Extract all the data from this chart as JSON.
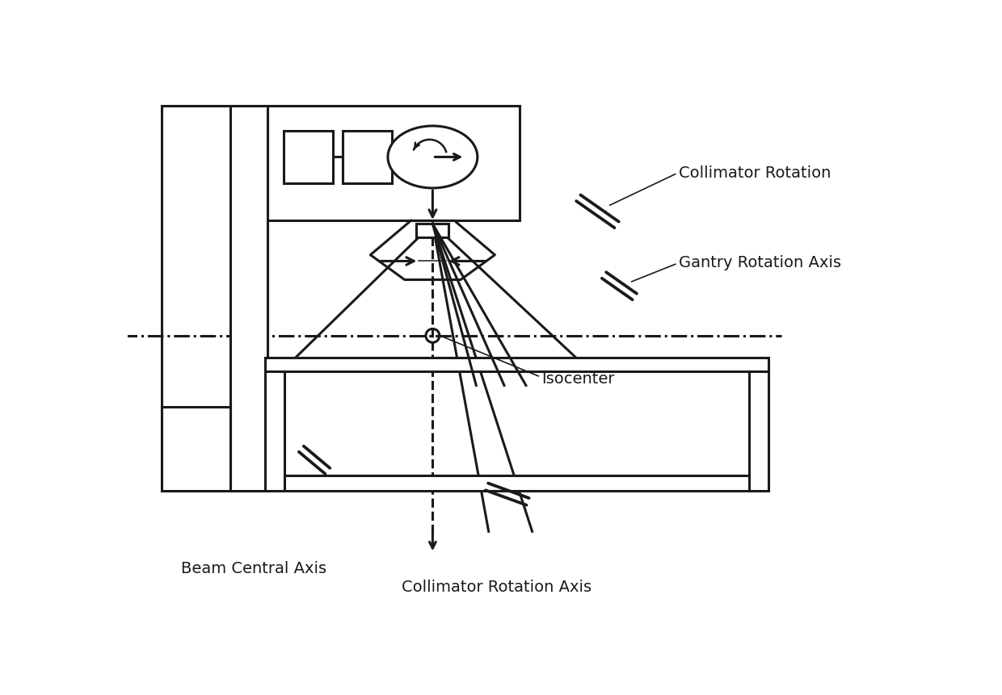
{
  "bg_color": "#ffffff",
  "line_color": "#1a1a1a",
  "lw": 2.2,
  "labels": {
    "collimator_rotation": "Collimator Rotation",
    "gantry_rotation_axis": "Gantry Rotation Axis",
    "isocenter": "Isocenter",
    "beam_central_axis": "Beam Central Axis",
    "collimator_rotation_axis": "Collimator Rotation Axis"
  },
  "fontsize": 14
}
